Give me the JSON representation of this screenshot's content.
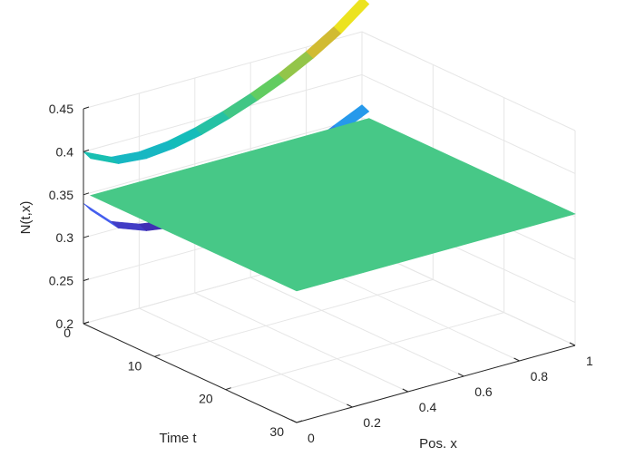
{
  "chart_data": {
    "type": "surface",
    "title": "",
    "xlabel": "Pos. x",
    "ylabel": "Time t",
    "zlabel": "N(t,x)",
    "xlim": [
      0,
      1
    ],
    "ylim": [
      0,
      30
    ],
    "zlim": [
      0.2,
      0.45
    ],
    "x_ticks": [
      "0",
      "0.2",
      "0.4",
      "0.6",
      "0.8",
      "1"
    ],
    "y_ticks": [
      "0",
      "10",
      "20",
      "30"
    ],
    "z_ticks": [
      "0.2",
      "0.25",
      "0.3",
      "0.35",
      "0.4",
      "0.45"
    ],
    "grid": true,
    "colormap": "parula",
    "surfaces": [
      {
        "description_key": "t=0 profile",
        "t_range": [
          0,
          1
        ],
        "profile": [
          [
            0,
            0.4
          ],
          [
            0.1,
            0.385
          ],
          [
            0.2,
            0.382
          ],
          [
            0.3,
            0.385
          ],
          [
            0.4,
            0.392
          ],
          [
            0.5,
            0.402
          ],
          [
            0.6,
            0.414
          ],
          [
            0.7,
            0.428
          ],
          [
            0.8,
            0.445
          ],
          [
            0.9,
            0.465
          ],
          [
            1.0,
            0.49
          ]
        ]
      },
      {
        "description_key": "lower transient",
        "t_range": [
          0,
          1
        ],
        "profile": [
          [
            0,
            0.34
          ],
          [
            0.1,
            0.31
          ],
          [
            0.2,
            0.298
          ],
          [
            0.3,
            0.293
          ],
          [
            0.4,
            0.295
          ],
          [
            0.5,
            0.3
          ],
          [
            0.6,
            0.31
          ],
          [
            0.7,
            0.322
          ],
          [
            0.8,
            0.335
          ],
          [
            0.9,
            0.35
          ],
          [
            1.0,
            0.365
          ]
        ]
      },
      {
        "description_key": "steady plane",
        "t_range": [
          1,
          30
        ],
        "value": 0.353,
        "color": "#47c887"
      }
    ]
  }
}
